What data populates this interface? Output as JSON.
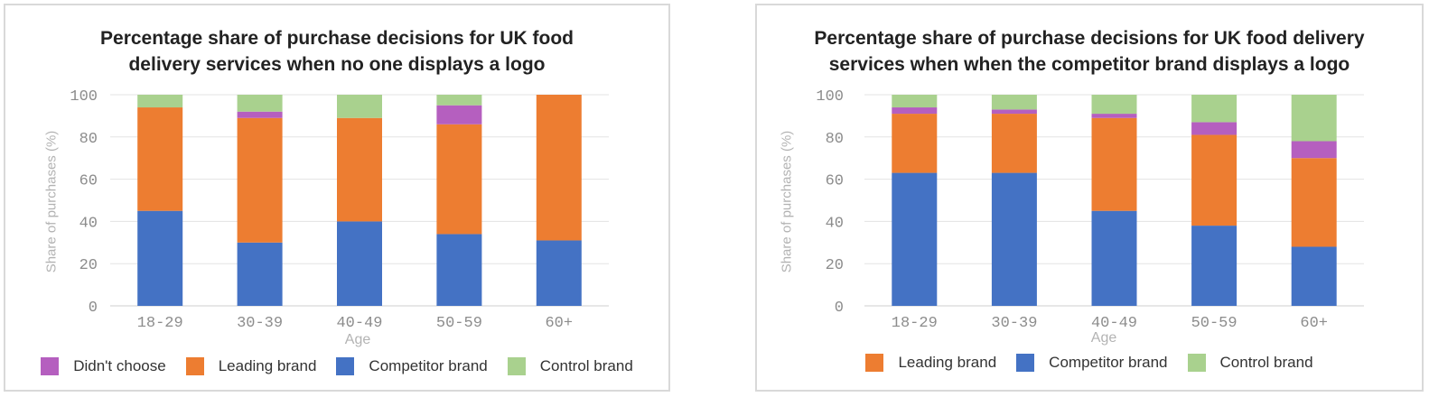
{
  "chart_data": [
    {
      "type": "bar",
      "stacked": true,
      "title_lines": [
        "Percentage share of purchase decisions for UK food",
        "delivery services when no one displays a logo"
      ],
      "xlabel": "Age",
      "ylabel": "Share of purchases (%)",
      "ylim": [
        0,
        100
      ],
      "yticks": [
        "0",
        "20",
        "40",
        "60",
        "80",
        "100"
      ],
      "categories": [
        "18-29",
        "30-39",
        "40-49",
        "50-59",
        "60+"
      ],
      "legend_position": "bottom",
      "grid": true,
      "series": [
        {
          "name": "Competitor brand",
          "color": "#4472c4",
          "values": [
            45,
            30,
            40,
            34,
            31
          ]
        },
        {
          "name": "Leading brand",
          "color": "#ed7d31",
          "values": [
            49,
            59,
            49,
            52,
            69
          ]
        },
        {
          "name": "Didn't choose",
          "color": "#b55fbf",
          "values": [
            0,
            3,
            0,
            9,
            0
          ]
        },
        {
          "name": "Control brand",
          "color": "#a9d18e",
          "values": [
            6,
            8,
            11,
            5,
            0
          ]
        }
      ],
      "legend": [
        "Didn't choose",
        "Leading brand",
        "Competitor brand",
        "Control brand"
      ]
    },
    {
      "type": "bar",
      "stacked": true,
      "title_lines": [
        "Percentage share of purchase decisions for UK food delivery",
        "services when when the competitor brand displays a logo"
      ],
      "xlabel": "Age",
      "ylabel": "Share of purchases (%)",
      "ylim": [
        0,
        100
      ],
      "yticks": [
        "0",
        "20",
        "40",
        "60",
        "80",
        "100"
      ],
      "categories": [
        "18-29",
        "30-39",
        "40-49",
        "50-59",
        "60+"
      ],
      "legend_position": "bottom",
      "grid": true,
      "series": [
        {
          "name": "Competitor brand",
          "color": "#4472c4",
          "values": [
            63,
            63,
            45,
            38,
            28
          ]
        },
        {
          "name": "Leading brand",
          "color": "#ed7d31",
          "values": [
            28,
            28,
            44,
            43,
            42
          ]
        },
        {
          "name": "Didn't choose",
          "color": "#b55fbf",
          "values": [
            3,
            2,
            2,
            6,
            8
          ]
        },
        {
          "name": "Control brand",
          "color": "#a9d18e",
          "values": [
            6,
            7,
            9,
            13,
            22
          ]
        }
      ],
      "legend": [
        "Leading brand",
        "Competitor brand",
        "Control brand"
      ]
    }
  ]
}
